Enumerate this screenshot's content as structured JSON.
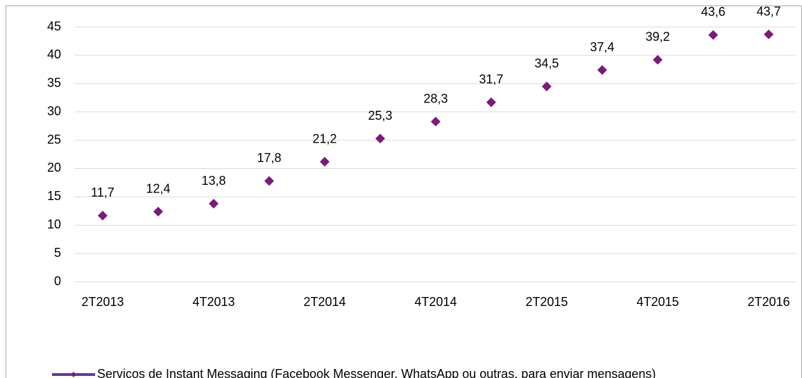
{
  "chart_data": {
    "type": "line",
    "categories": [
      "2T2013",
      null,
      "4T2013",
      null,
      "2T2014",
      null,
      "4T2014",
      null,
      "2T2015",
      null,
      "4T2015",
      null,
      "2T2016"
    ],
    "series": [
      {
        "name": "Serviços de Instant Messaging (Facebook Messenger, WhatsApp ou outras, para enviar mensagens)",
        "color": "#7030a0",
        "marker_color": "#7b1a7b",
        "values": [
          11.7,
          12.4,
          13.8,
          17.8,
          21.2,
          25.3,
          28.3,
          31.7,
          34.5,
          37.4,
          39.2,
          43.6,
          43.7
        ],
        "value_labels": [
          "11,7",
          "12,4",
          "13,8",
          "17,8",
          "21,2",
          "25,3",
          "28,3",
          "31,7",
          "34,5",
          "37,4",
          "39,2",
          "43,6",
          "43,7"
        ]
      }
    ],
    "ylim": [
      0,
      45
    ],
    "yticks": [
      0,
      5,
      10,
      15,
      20,
      25,
      30,
      35,
      40,
      45
    ],
    "grid": true,
    "legend": "bottom"
  }
}
